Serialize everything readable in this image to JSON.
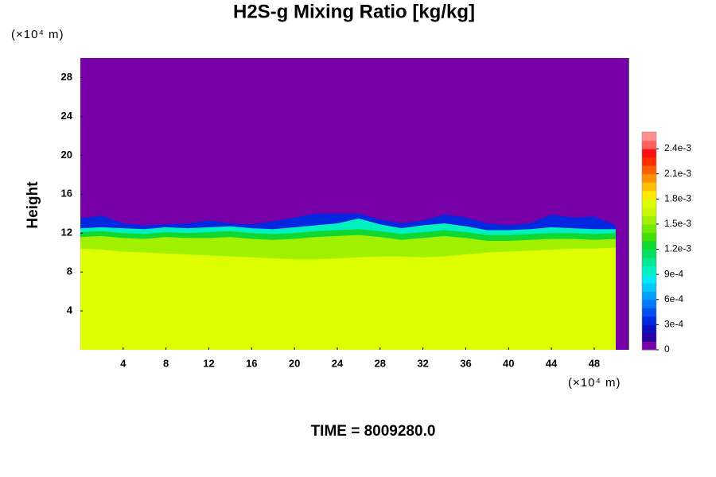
{
  "chart_data": {
    "type": "contour",
    "title": "H2S-g Mixing Ratio [kg/kg]",
    "y_label": "Height",
    "x_unit": "(×10⁴ m)",
    "y_unit": "(×10⁴ m)",
    "time_label": "TIME = 8009280.0",
    "xlim": [
      0,
      51.2
    ],
    "ylim": [
      0,
      30
    ],
    "xticks": [
      4,
      8,
      12,
      16,
      20,
      24,
      28,
      32,
      36,
      40,
      44,
      48
    ],
    "yticks": [
      4,
      8,
      12,
      16,
      20,
      24,
      28
    ],
    "x": [
      0,
      2,
      4,
      6,
      8,
      10,
      12,
      14,
      16,
      18,
      20,
      22,
      24,
      26,
      28,
      30,
      32,
      34,
      36,
      38,
      40,
      42,
      44,
      46,
      48,
      50
    ],
    "layers": [
      {
        "value": 0.0003,
        "top": [
          13.5,
          13.8,
          13,
          12.8,
          12.9,
          13,
          13.3,
          13,
          12.9,
          13.2,
          13.6,
          14,
          14,
          14,
          13.4,
          13,
          13.3,
          13.9,
          13.6,
          13,
          12.8,
          13,
          13.9,
          13.6,
          13.7,
          12.8
        ]
      },
      {
        "value": 0.0009,
        "top": [
          12.5,
          12.6,
          12.5,
          12.4,
          12.6,
          12.5,
          12.6,
          12.7,
          12.5,
          12.4,
          12.6,
          12.8,
          13,
          13.5,
          12.9,
          12.5,
          12.8,
          13,
          12.7,
          12.3,
          12.3,
          12.4,
          12.6,
          12.5,
          12.4,
          12.4
        ]
      },
      {
        "value": 0.0012,
        "top": [
          12.1,
          12.2,
          12,
          11.9,
          12.1,
          12,
          12.1,
          12.2,
          12,
          11.9,
          12,
          12.2,
          12.3,
          12.4,
          12.2,
          11.9,
          12.1,
          12.3,
          12.1,
          11.8,
          11.8,
          11.9,
          12,
          12,
          11.9,
          12
        ]
      },
      {
        "value": 0.0015,
        "top": [
          11.6,
          11.7,
          11.5,
          11.4,
          11.6,
          11.5,
          11.5,
          11.6,
          11.4,
          11.3,
          11.4,
          11.6,
          11.7,
          11.8,
          11.6,
          11.3,
          11.5,
          11.7,
          11.5,
          11.2,
          11.2,
          11.3,
          11.4,
          11.4,
          11.3,
          11.4
        ]
      },
      {
        "value": 0.00175,
        "top": [
          10.4,
          10.3,
          10.1,
          10,
          9.9,
          9.8,
          9.7,
          9.6,
          9.5,
          9.4,
          9.3,
          9.3,
          9.4,
          9.5,
          9.6,
          9.6,
          9.5,
          9.6,
          9.8,
          10,
          10.1,
          10.2,
          10.3,
          10.4,
          10.4,
          10.5
        ]
      }
    ],
    "colorbar": {
      "lim": [
        0,
        0.0026
      ],
      "ticks": [
        0,
        {
          "value": 0.0003,
          "label": "3e-4"
        },
        {
          "value": 0.0006,
          "label": "6e-4"
        },
        {
          "value": 0.0009,
          "label": "9e-4"
        },
        {
          "value": 0.0012,
          "label": "1.2e-3"
        },
        {
          "value": 0.0015,
          "label": "1.5e-3"
        },
        {
          "value": 0.0018,
          "label": "1.8e-3"
        },
        {
          "value": 0.0021,
          "label": "2.1e-3"
        },
        {
          "value": 0.0024,
          "label": "2.4e-3"
        }
      ],
      "colors": [
        "#7800a8",
        "#2a00a0",
        "#1010c0",
        "#0028e0",
        "#0050f0",
        "#0078ff",
        "#00a0ff",
        "#00c8ff",
        "#00e8f0",
        "#00f0c0",
        "#00e890",
        "#00e060",
        "#10d830",
        "#40e000",
        "#70e800",
        "#a0f000",
        "#c8f800",
        "#ddff00",
        "#ffe800",
        "#ffc000",
        "#ff9000",
        "#ff6000",
        "#ff3000",
        "#ff1010",
        "#ff6060",
        "#ff9090"
      ]
    }
  }
}
